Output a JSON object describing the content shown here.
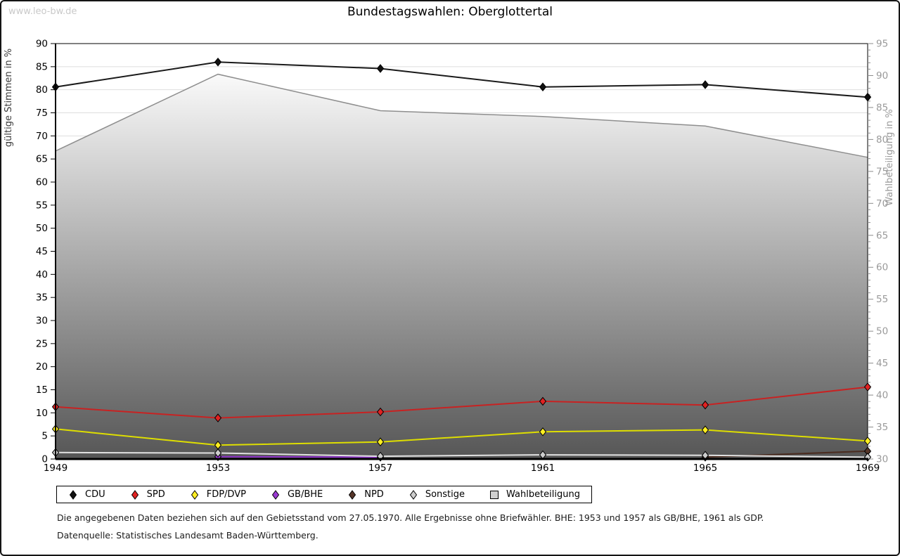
{
  "watermark": "www.leo-bw.de",
  "title": "Bundestagswahlen: Oberglottertal",
  "footnotes": {
    "line1": "Die angegebenen Daten beziehen sich auf den Gebietsstand vom 27.05.1970. Alle Ergebnisse ohne Briefwähler. BHE: 1953 und 1957 als GB/BHE, 1961 als GDP.",
    "line2": "Datenquelle: Statistisches Landesamt Baden-Württemberg."
  },
  "chart_data": {
    "type": "line",
    "title": "Bundestagswahlen: Oberglottertal",
    "x": [
      1949,
      1953,
      1957,
      1961,
      1965,
      1969
    ],
    "left_axis": {
      "label": "gültige Stimmen in %",
      "min": 0,
      "max": 90,
      "tick_step": 5
    },
    "right_axis": {
      "label": "Wahlbeteiligung in %",
      "min": 30,
      "max": 95,
      "tick_step": 5,
      "minor_tick_step": 1
    },
    "grid": true,
    "legend_position": "bottom",
    "series": [
      {
        "name": "CDU",
        "axis": "left",
        "style": "line",
        "marker": "diamond",
        "color": "#1a1a1a",
        "marker_color": "#111111",
        "values": [
          80.6,
          86.0,
          84.6,
          80.6,
          81.1,
          78.4
        ]
      },
      {
        "name": "SPD",
        "axis": "left",
        "style": "line",
        "marker": "diamond",
        "color": "#c82222",
        "marker_color": "#e02222",
        "values": [
          11.3,
          8.9,
          10.2,
          12.5,
          11.7,
          15.6
        ]
      },
      {
        "name": "FDP/DVP",
        "axis": "left",
        "style": "line",
        "marker": "diamond",
        "color": "#dede00",
        "marker_color": "#ffee22",
        "values": [
          6.5,
          3.0,
          3.7,
          5.9,
          6.3,
          3.9
        ]
      },
      {
        "name": "GB/BHE",
        "axis": "left",
        "style": "line",
        "marker": "diamond",
        "color": "#8c2fc8",
        "marker_color": "#9a3ad2",
        "values": [
          null,
          0.5,
          0.4,
          null,
          null,
          null
        ]
      },
      {
        "name": "NPD",
        "axis": "left",
        "style": "line",
        "marker": "diamond",
        "color": "#4a2c20",
        "marker_color": "#553528",
        "values": [
          null,
          null,
          null,
          null,
          0.4,
          1.7
        ]
      },
      {
        "name": "Sonstige",
        "axis": "left",
        "style": "line",
        "marker": "diamond",
        "color": "#e2e2e2",
        "marker_color": "#cccccc",
        "values": [
          1.4,
          1.3,
          0.6,
          0.9,
          0.8,
          0.4
        ]
      },
      {
        "name": "Wahlbeteiligung",
        "axis": "right",
        "style": "area",
        "marker": "square",
        "color": "#8e8e8e",
        "fill_top": "#fafafa",
        "fill_bottom": "#565656",
        "marker_color": "#cfcfcf",
        "values": [
          78.2,
          90.2,
          84.5,
          83.6,
          82.1,
          77.2
        ]
      }
    ]
  }
}
